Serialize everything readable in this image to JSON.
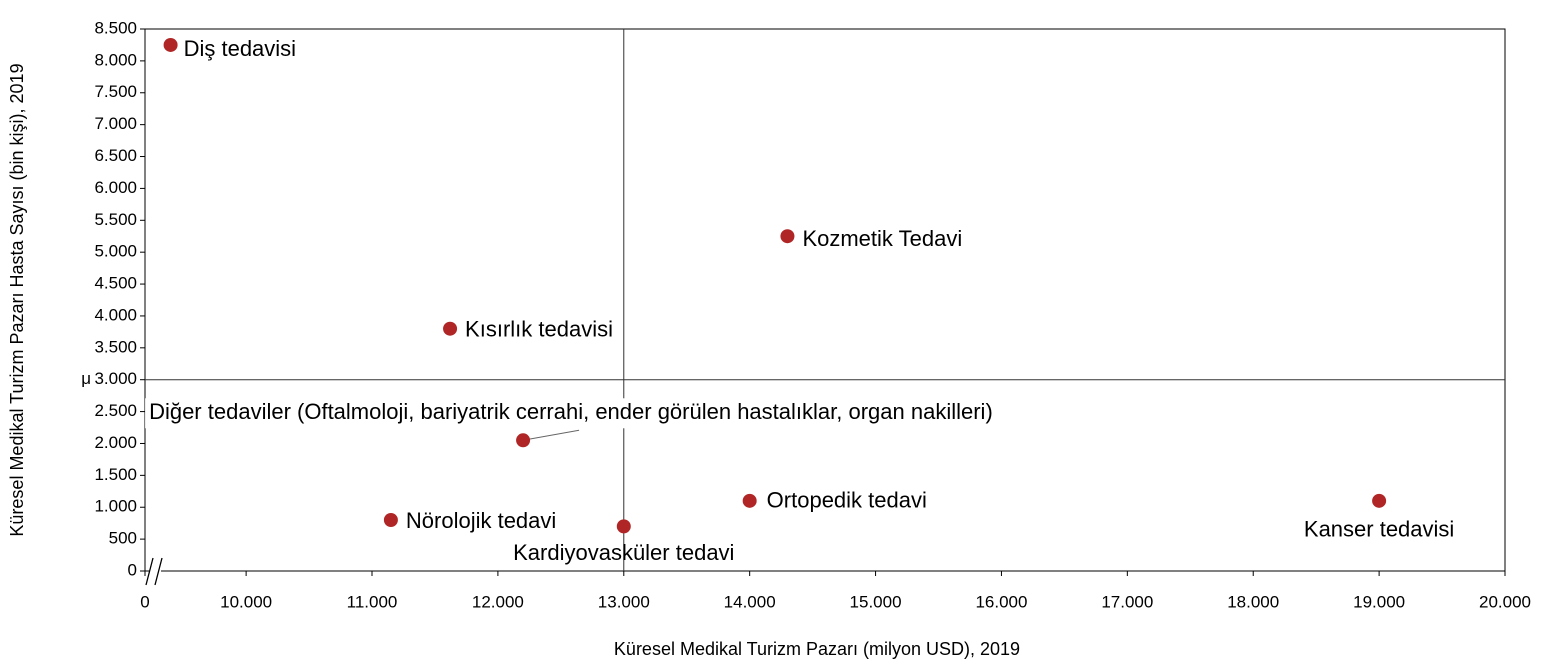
{
  "chart_data": {
    "type": "scatter",
    "xlabel": "Küresel Medikal Turizm Pazarı (milyon USD), 2019",
    "ylabel": "Küresel Medikal Turizm Pazarı Hasta Sayısı  (bin kişi), 2019",
    "points": [
      {
        "label": "Diş tedavisi",
        "x": 9400,
        "y": 8250
      },
      {
        "label": "Kozmetik Tedavi",
        "x": 14300,
        "y": 5250
      },
      {
        "label": "Kısırlık tedavisi",
        "x": 11620,
        "y": 3800
      },
      {
        "label": "Diğer tedaviler (Oftalmoloji, bariyatrik cerrahi, ender görülen hastalıklar, organ nakilleri)",
        "x": 12200,
        "y": 2050
      },
      {
        "label": "Nörolojik tedavi",
        "x": 11150,
        "y": 800
      },
      {
        "label": "Kardiyovasküler tedavi",
        "x": 13000,
        "y": 700
      },
      {
        "label": "Ortopedik tedavi",
        "x": 14000,
        "y": 1100
      },
      {
        "label": "Kanser tedavisi",
        "x": 19000,
        "y": 1100
      }
    ],
    "color": "#b02626",
    "xlim": [
      0,
      20000
    ],
    "xbreak": [
      2000,
      9300
    ],
    "xticks": [
      0,
      {
        "value": 10000,
        "label": "10.000"
      },
      {
        "value": 11000,
        "label": "11.000"
      },
      {
        "value": 12000,
        "label": "12.000"
      },
      {
        "value": 13000,
        "label": "13.000"
      },
      {
        "value": 14000,
        "label": "14.000"
      },
      {
        "value": 15000,
        "label": "15.000"
      },
      {
        "value": 16000,
        "label": "16.000"
      },
      {
        "value": 17000,
        "label": "17.000"
      },
      {
        "value": 18000,
        "label": "18.000"
      },
      {
        "value": 19000,
        "label": "19.000"
      },
      {
        "value": 20000,
        "label": "20.000"
      }
    ],
    "ylim": [
      0,
      8500
    ],
    "yticks": [
      0,
      500,
      {
        "value": 1000,
        "label": "1.000"
      },
      {
        "value": 1500,
        "label": "1.500"
      },
      {
        "value": 2000,
        "label": "2.000"
      },
      {
        "value": 2500,
        "label": "2.500"
      },
      {
        "value": 3000,
        "label": "3.000"
      },
      {
        "value": 3500,
        "label": "3.500"
      },
      {
        "value": 4000,
        "label": "4.000"
      },
      {
        "value": 4500,
        "label": "4.500"
      },
      {
        "value": 5000,
        "label": "5.000"
      },
      {
        "value": 5500,
        "label": "5.500"
      },
      {
        "value": 6000,
        "label": "6.000"
      },
      {
        "value": 6500,
        "label": "6.500"
      },
      {
        "value": 7000,
        "label": "7.000"
      },
      {
        "value": 7500,
        "label": "7.500"
      },
      {
        "value": 8000,
        "label": "8.000"
      },
      {
        "value": 8500,
        "label": "8.500"
      }
    ],
    "mean_x": 13000,
    "mean_y": 3000,
    "mean_label": "μ"
  }
}
